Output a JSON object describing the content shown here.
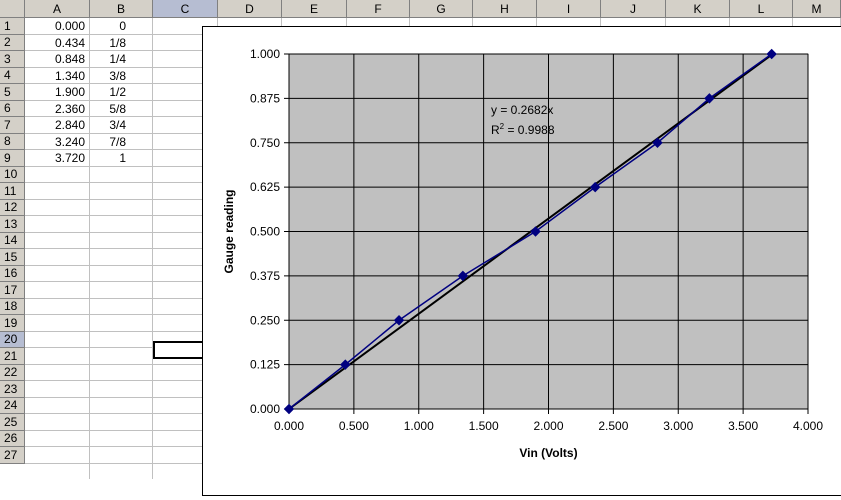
{
  "spreadsheet": {
    "columns": [
      "A",
      "B",
      "C",
      "D",
      "E",
      "F",
      "G",
      "H",
      "I",
      "J",
      "K",
      "L",
      "M"
    ],
    "selected_column": "C",
    "selected_row": "20",
    "rows": [
      "1",
      "2",
      "3",
      "4",
      "5",
      "6",
      "7",
      "8",
      "9",
      "10",
      "11",
      "12",
      "13",
      "14",
      "15",
      "16",
      "17",
      "18",
      "19",
      "20",
      "21",
      "22",
      "23",
      "24",
      "25",
      "26",
      "27"
    ],
    "column_a": [
      "0.000",
      "0.434",
      "0.848",
      "1.340",
      "1.900",
      "2.360",
      "2.840",
      "3.240",
      "3.720"
    ],
    "column_b": [
      "0",
      "1/8",
      "1/4",
      "3/8",
      "1/2",
      "5/8",
      "3/4",
      "7/8",
      "1"
    ]
  },
  "chart_data": {
    "type": "scatter",
    "xlabel": "Vin (Volts)",
    "ylabel": "Gauge reading",
    "xlim": [
      0,
      4
    ],
    "ylim": [
      0,
      1
    ],
    "x_ticks": [
      "0.000",
      "0.500",
      "1.000",
      "1.500",
      "2.000",
      "2.500",
      "3.000",
      "3.500",
      "4.000"
    ],
    "y_ticks": [
      "0.000",
      "0.125",
      "0.250",
      "0.375",
      "0.500",
      "0.625",
      "0.750",
      "0.875",
      "1.000"
    ],
    "grid": true,
    "plot_background": "#c0c0c0",
    "series": [
      {
        "x": [
          0.0,
          0.434,
          0.848,
          1.34,
          1.9,
          2.36,
          2.84,
          3.24,
          3.72
        ],
        "y": [
          0,
          0.125,
          0.25,
          0.375,
          0.5,
          0.625,
          0.75,
          0.875,
          1
        ],
        "color": "#000080",
        "marker": "diamond"
      }
    ],
    "trendline": {
      "type": "linear",
      "slope": 0.2682,
      "x_range": [
        0,
        3.72
      ],
      "color": "#000000"
    },
    "annotation": {
      "equation": "y = 0.2682x",
      "r2_prefix": "R",
      "r2_sup": "2",
      "r2_suffix": " = 0.9988"
    }
  }
}
